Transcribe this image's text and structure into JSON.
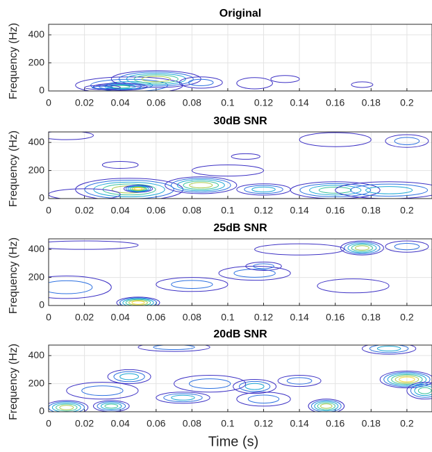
{
  "chart_data": [
    {
      "type": "contour",
      "title": "Original",
      "ylabel": "Frequency (Hz)",
      "xlim": [
        0,
        0.214
      ],
      "ylim": [
        0,
        475
      ],
      "xticks": [
        0,
        0.02,
        0.04,
        0.06,
        0.08,
        0.1,
        0.12,
        0.14,
        0.16,
        0.18,
        0.2
      ],
      "yticks": [
        0,
        200,
        400
      ],
      "grid": true,
      "colors": [
        "#3b2fc4",
        "#2a6fe0",
        "#18a6d4",
        "#37c29a",
        "#a6c94a",
        "#f4d63a"
      ],
      "peaks": [
        {
          "x": 0.045,
          "y": 40,
          "width": 0.03,
          "height": 60,
          "levels": 3
        },
        {
          "x": 0.06,
          "y": 85,
          "width": 0.025,
          "height": 60,
          "levels": 5
        },
        {
          "x": 0.04,
          "y": 30,
          "width": 0.015,
          "height": 25,
          "levels": 4
        },
        {
          "x": 0.03,
          "y": 25,
          "width": 0.01,
          "height": 15,
          "levels": 2
        },
        {
          "x": 0.085,
          "y": 60,
          "width": 0.012,
          "height": 40,
          "levels": 2
        },
        {
          "x": 0.115,
          "y": 55,
          "width": 0.01,
          "height": 40,
          "levels": 1
        },
        {
          "x": 0.132,
          "y": 85,
          "width": 0.008,
          "height": 25,
          "levels": 1
        },
        {
          "x": 0.175,
          "y": 45,
          "width": 0.006,
          "height": 20,
          "levels": 1
        }
      ]
    },
    {
      "type": "contour",
      "title": "30dB SNR",
      "ylabel": "Frequency (Hz)",
      "xlim": [
        0,
        0.214
      ],
      "ylim": [
        0,
        475
      ],
      "xticks": [
        0,
        0.02,
        0.04,
        0.06,
        0.08,
        0.1,
        0.12,
        0.14,
        0.16,
        0.18,
        0.2
      ],
      "yticks": [
        0,
        200,
        400
      ],
      "grid": true,
      "colors": [
        "#3b2fc4",
        "#2a6fe0",
        "#18a6d4",
        "#37c29a",
        "#a6c94a",
        "#f4d63a"
      ],
      "peaks": [
        {
          "x": 0.045,
          "y": 65,
          "width": 0.03,
          "height": 80,
          "levels": 5
        },
        {
          "x": 0.05,
          "y": 70,
          "width": 0.008,
          "height": 25,
          "levels": 6
        },
        {
          "x": 0.085,
          "y": 95,
          "width": 0.02,
          "height": 60,
          "levels": 5
        },
        {
          "x": 0.12,
          "y": 65,
          "width": 0.015,
          "height": 40,
          "levels": 3
        },
        {
          "x": 0.16,
          "y": 60,
          "width": 0.025,
          "height": 60,
          "levels": 4
        },
        {
          "x": 0.19,
          "y": 60,
          "width": 0.03,
          "height": 60,
          "levels": 3
        },
        {
          "x": 0.1,
          "y": 200,
          "width": 0.02,
          "height": 40,
          "levels": 1
        },
        {
          "x": 0.16,
          "y": 420,
          "width": 0.02,
          "height": 50,
          "levels": 1
        },
        {
          "x": 0.2,
          "y": 410,
          "width": 0.012,
          "height": 45,
          "levels": 2
        },
        {
          "x": 0.01,
          "y": 450,
          "width": 0.015,
          "height": 30,
          "levels": 1
        },
        {
          "x": 0.04,
          "y": 240,
          "width": 0.01,
          "height": 25,
          "levels": 1
        },
        {
          "x": 0.11,
          "y": 300,
          "width": 0.008,
          "height": 20,
          "levels": 1
        },
        {
          "x": 0.02,
          "y": 30,
          "width": 0.02,
          "height": 40,
          "levels": 1
        }
      ]
    },
    {
      "type": "contour",
      "title": "25dB SNR",
      "ylabel": "Frequency (Hz)",
      "xlim": [
        0,
        0.214
      ],
      "ylim": [
        0,
        475
      ],
      "xticks": [
        0,
        0.02,
        0.04,
        0.06,
        0.08,
        0.1,
        0.12,
        0.14,
        0.16,
        0.18,
        0.2
      ],
      "yticks": [
        0,
        200,
        400
      ],
      "grid": true,
      "colors": [
        "#3b2fc4",
        "#2a6fe0",
        "#18a6d4",
        "#37c29a",
        "#a6c94a",
        "#f4d63a"
      ],
      "peaks": [
        {
          "x": 0.05,
          "y": 20,
          "width": 0.012,
          "height": 40,
          "levels": 6
        },
        {
          "x": 0.175,
          "y": 410,
          "width": 0.012,
          "height": 50,
          "levels": 5
        },
        {
          "x": 0.08,
          "y": 150,
          "width": 0.02,
          "height": 50,
          "levels": 2
        },
        {
          "x": 0.115,
          "y": 230,
          "width": 0.02,
          "height": 50,
          "levels": 2
        },
        {
          "x": 0.12,
          "y": 280,
          "width": 0.01,
          "height": 30,
          "levels": 2
        },
        {
          "x": 0.01,
          "y": 130,
          "width": 0.025,
          "height": 80,
          "levels": 2
        },
        {
          "x": 0.17,
          "y": 140,
          "width": 0.02,
          "height": 50,
          "levels": 1
        },
        {
          "x": 0.02,
          "y": 430,
          "width": 0.03,
          "height": 30,
          "levels": 1
        },
        {
          "x": 0.2,
          "y": 420,
          "width": 0.012,
          "height": 40,
          "levels": 2
        },
        {
          "x": 0.14,
          "y": 400,
          "width": 0.025,
          "height": 40,
          "levels": 1
        }
      ]
    },
    {
      "type": "contour",
      "title": "20dB SNR",
      "ylabel": "Frequency (Hz)",
      "xlabel": "Time (s)",
      "xlim": [
        0,
        0.214
      ],
      "ylim": [
        0,
        475
      ],
      "xticks": [
        0,
        0.02,
        0.04,
        0.06,
        0.08,
        0.1,
        0.12,
        0.14,
        0.16,
        0.18,
        0.2
      ],
      "yticks": [
        0,
        200,
        400
      ],
      "grid": true,
      "colors": [
        "#3b2fc4",
        "#2a6fe0",
        "#18a6d4",
        "#37c29a",
        "#a6c94a",
        "#f4d63a"
      ],
      "peaks": [
        {
          "x": 0.01,
          "y": 30,
          "width": 0.012,
          "height": 50,
          "levels": 5
        },
        {
          "x": 0.035,
          "y": 40,
          "width": 0.01,
          "height": 40,
          "levels": 4
        },
        {
          "x": 0.155,
          "y": 40,
          "width": 0.01,
          "height": 50,
          "levels": 5
        },
        {
          "x": 0.2,
          "y": 230,
          "width": 0.015,
          "height": 60,
          "levels": 6
        },
        {
          "x": 0.21,
          "y": 150,
          "width": 0.01,
          "height": 60,
          "levels": 4
        },
        {
          "x": 0.19,
          "y": 450,
          "width": 0.015,
          "height": 40,
          "levels": 3
        },
        {
          "x": 0.045,
          "y": 250,
          "width": 0.012,
          "height": 50,
          "levels": 3
        },
        {
          "x": 0.075,
          "y": 100,
          "width": 0.015,
          "height": 40,
          "levels": 3
        },
        {
          "x": 0.115,
          "y": 180,
          "width": 0.012,
          "height": 50,
          "levels": 3
        },
        {
          "x": 0.14,
          "y": 220,
          "width": 0.012,
          "height": 40,
          "levels": 2
        },
        {
          "x": 0.07,
          "y": 460,
          "width": 0.02,
          "height": 30,
          "levels": 2
        },
        {
          "x": 0.09,
          "y": 200,
          "width": 0.02,
          "height": 60,
          "levels": 2
        },
        {
          "x": 0.03,
          "y": 150,
          "width": 0.02,
          "height": 60,
          "levels": 2
        },
        {
          "x": 0.12,
          "y": 90,
          "width": 0.015,
          "height": 50,
          "levels": 2
        }
      ]
    }
  ]
}
